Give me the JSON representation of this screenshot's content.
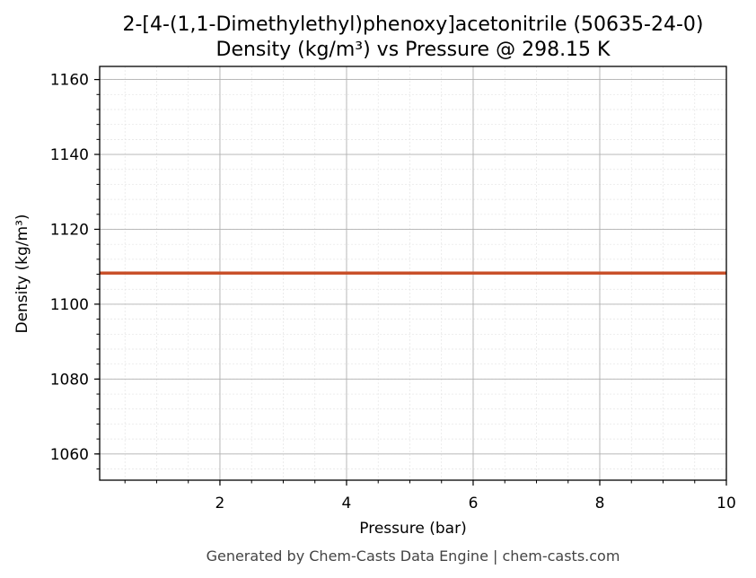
{
  "chart_data": {
    "type": "line",
    "title": "2-[4-(1,1-Dimethylethyl)phenoxy]acetonitrile (50635-24-0)",
    "subtitle": "Density (kg/m³) vs Pressure @ 298.15 K",
    "xlabel": "Pressure (bar)",
    "ylabel": "Density (kg/m³)",
    "xlim": [
      0.1,
      10
    ],
    "ylim": [
      1053,
      1163.5
    ],
    "x_ticks": [
      2,
      4,
      6,
      8,
      10
    ],
    "y_ticks": [
      1060,
      1080,
      1100,
      1120,
      1140,
      1160
    ],
    "grid": true,
    "series": [
      {
        "color": "#c8502a",
        "x": [
          0.1,
          10
        ],
        "y": [
          1108.3,
          1108.3
        ]
      }
    ]
  },
  "footer": "Generated by Chem-Casts Data Engine | chem-casts.com"
}
